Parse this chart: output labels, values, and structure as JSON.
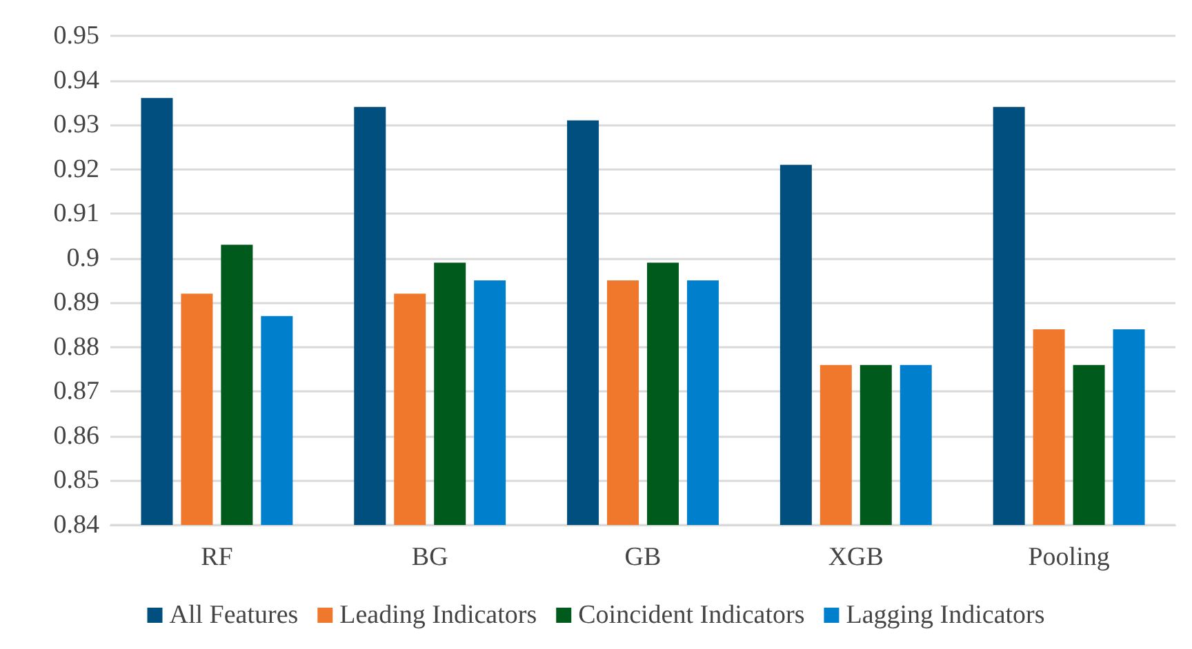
{
  "chart_data": {
    "type": "bar",
    "categories": [
      "RF",
      "BG",
      "GB",
      "XGB",
      "Pooling"
    ],
    "series": [
      {
        "name": "All Features",
        "color": "#004f7f",
        "values": [
          0.936,
          0.934,
          0.931,
          0.921,
          0.934
        ]
      },
      {
        "name": "Leading Indicators",
        "color": "#f0782d",
        "values": [
          0.892,
          0.892,
          0.895,
          0.876,
          0.884
        ]
      },
      {
        "name": "Coincident Indicators",
        "color": "#005a1c",
        "values": [
          0.903,
          0.899,
          0.899,
          0.876,
          0.876
        ]
      },
      {
        "name": "Lagging Indicators",
        "color": "#007fcc",
        "values": [
          0.887,
          0.895,
          0.895,
          0.876,
          0.884
        ]
      }
    ],
    "ylim": [
      0.84,
      0.95
    ],
    "yticks": [
      0.84,
      0.85,
      0.86,
      0.87,
      0.88,
      0.89,
      0.9,
      0.91,
      0.92,
      0.93,
      0.94,
      0.95
    ],
    "grid": "y",
    "legend": "bottom"
  }
}
